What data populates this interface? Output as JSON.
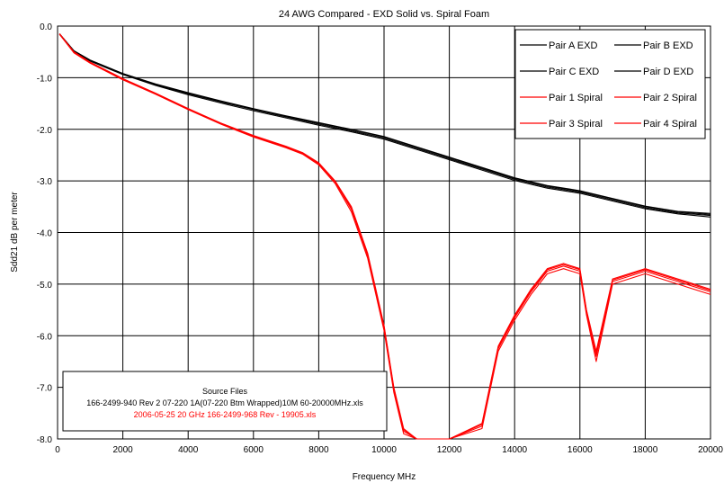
{
  "chart_data": {
    "type": "line",
    "title": "24 AWG Compared - EXD Solid vs. Spiral Foam",
    "xlabel": "Frequency  MHz",
    "ylabel": "Sdd21  dB per meter",
    "xlim": [
      0,
      20000
    ],
    "ylim": [
      -8,
      0
    ],
    "x_ticks": [
      "0",
      "2000",
      "4000",
      "6000",
      "8000",
      "10000",
      "12000",
      "14000",
      "16000",
      "18000",
      "20000"
    ],
    "y_ticks": [
      "0.0",
      "-1.0",
      "-2.0",
      "-3.0",
      "-4.0",
      "-5.0",
      "-6.0",
      "-7.0",
      "-8.0"
    ],
    "grid": true,
    "legend_position": "top-right",
    "series": [
      {
        "name": "Pair A EXD",
        "color": "#000000",
        "x": [
          60,
          500,
          1000,
          2000,
          3000,
          4000,
          5000,
          6000,
          7000,
          8000,
          9000,
          10000,
          11000,
          12000,
          13000,
          14000,
          15000,
          16000,
          17000,
          18000,
          19000,
          20000
        ],
        "y": [
          -0.15,
          -0.48,
          -0.66,
          -0.92,
          -1.13,
          -1.3,
          -1.46,
          -1.61,
          -1.75,
          -1.88,
          -2.01,
          -2.15,
          -2.35,
          -2.55,
          -2.75,
          -2.95,
          -3.1,
          -3.2,
          -3.35,
          -3.5,
          -3.6,
          -3.65
        ]
      },
      {
        "name": "Pair B EXD",
        "color": "#000000",
        "x": [
          60,
          500,
          1000,
          2000,
          3000,
          4000,
          5000,
          6000,
          7000,
          8000,
          9000,
          10000,
          11000,
          12000,
          13000,
          14000,
          15000,
          16000,
          17000,
          18000,
          19000,
          20000
        ],
        "y": [
          -0.15,
          -0.49,
          -0.67,
          -0.93,
          -1.14,
          -1.31,
          -1.47,
          -1.62,
          -1.76,
          -1.9,
          -2.03,
          -2.17,
          -2.37,
          -2.57,
          -2.77,
          -2.97,
          -3.12,
          -3.22,
          -3.37,
          -3.52,
          -3.62,
          -3.67
        ]
      },
      {
        "name": "Pair C EXD",
        "color": "#000000",
        "x": [
          60,
          500,
          1000,
          2000,
          3000,
          4000,
          5000,
          6000,
          7000,
          8000,
          9000,
          10000,
          11000,
          12000,
          13000,
          14000,
          15000,
          16000,
          17000,
          18000,
          19000,
          20000
        ],
        "y": [
          -0.16,
          -0.5,
          -0.68,
          -0.94,
          -1.15,
          -1.33,
          -1.49,
          -1.64,
          -1.78,
          -1.92,
          -2.05,
          -2.19,
          -2.39,
          -2.59,
          -2.79,
          -2.99,
          -3.14,
          -3.24,
          -3.39,
          -3.54,
          -3.64,
          -3.7
        ]
      },
      {
        "name": "Pair D EXD",
        "color": "#000000",
        "x": [
          60,
          500,
          1000,
          2000,
          3000,
          4000,
          5000,
          6000,
          7000,
          8000,
          9000,
          10000,
          11000,
          12000,
          13000,
          14000,
          15000,
          16000,
          17000,
          18000,
          19000,
          20000
        ],
        "y": [
          -0.15,
          -0.48,
          -0.66,
          -0.92,
          -1.12,
          -1.29,
          -1.45,
          -1.6,
          -1.74,
          -1.87,
          -2.0,
          -2.14,
          -2.34,
          -2.54,
          -2.74,
          -2.94,
          -3.09,
          -3.19,
          -3.34,
          -3.49,
          -3.59,
          -3.63
        ]
      },
      {
        "name": "Pair 1 Spiral",
        "color": "#ff0000",
        "x": [
          60,
          500,
          1000,
          2000,
          3000,
          4000,
          5000,
          6000,
          7000,
          7500,
          8000,
          8500,
          9000,
          9500,
          10000,
          10300,
          10600,
          11000,
          12000,
          13000,
          13500,
          14000,
          14500,
          15000,
          15500,
          16000,
          16200,
          16500,
          17000,
          18000,
          19000,
          20000
        ],
        "y": [
          -0.15,
          -0.5,
          -0.7,
          -1.02,
          -1.3,
          -1.6,
          -1.88,
          -2.12,
          -2.33,
          -2.45,
          -2.65,
          -3.0,
          -3.5,
          -4.4,
          -5.8,
          -7.0,
          -7.8,
          -8.0,
          -8.0,
          -7.7,
          -6.2,
          -5.6,
          -5.1,
          -4.7,
          -4.6,
          -4.7,
          -5.5,
          -6.3,
          -4.9,
          -4.7,
          -4.9,
          -5.1
        ]
      },
      {
        "name": "Pair 2 Spiral",
        "color": "#ff0000",
        "x": [
          60,
          500,
          1000,
          2000,
          3000,
          4000,
          5000,
          6000,
          7000,
          7500,
          8000,
          8500,
          9000,
          9500,
          10000,
          10300,
          10600,
          11000,
          12000,
          13000,
          13500,
          14000,
          14500,
          15000,
          15500,
          16000,
          16200,
          16500,
          17000,
          18000,
          19000,
          20000
        ],
        "y": [
          -0.15,
          -0.51,
          -0.71,
          -1.03,
          -1.31,
          -1.61,
          -1.89,
          -2.14,
          -2.35,
          -2.47,
          -2.67,
          -3.02,
          -3.55,
          -4.45,
          -5.85,
          -7.05,
          -7.85,
          -8.0,
          -8.0,
          -7.75,
          -6.25,
          -5.65,
          -5.15,
          -4.75,
          -4.65,
          -4.75,
          -5.55,
          -6.4,
          -4.95,
          -4.75,
          -4.95,
          -5.15
        ]
      },
      {
        "name": "Pair 3 Spiral",
        "color": "#ff0000",
        "x": [
          60,
          500,
          1000,
          2000,
          3000,
          4000,
          5000,
          6000,
          7000,
          7500,
          8000,
          8500,
          9000,
          9500,
          10000,
          10300,
          10600,
          11000,
          12000,
          13000,
          13500,
          14000,
          14500,
          15000,
          15500,
          16000,
          16200,
          16500,
          17000,
          18000,
          19000,
          20000
        ],
        "y": [
          -0.16,
          -0.52,
          -0.72,
          -1.04,
          -1.32,
          -1.62,
          -1.9,
          -2.15,
          -2.36,
          -2.48,
          -2.69,
          -3.05,
          -3.6,
          -4.5,
          -5.9,
          -7.1,
          -7.9,
          -8.0,
          -8.0,
          -7.8,
          -6.3,
          -5.7,
          -5.2,
          -4.8,
          -4.7,
          -4.8,
          -5.6,
          -6.5,
          -5.0,
          -4.8,
          -5.0,
          -5.2
        ]
      },
      {
        "name": "Pair 4 Spiral",
        "color": "#ff0000",
        "x": [
          60,
          500,
          1000,
          2000,
          3000,
          4000,
          5000,
          6000,
          7000,
          7500,
          8000,
          8500,
          9000,
          9500,
          10000,
          10300,
          10600,
          11000,
          12000,
          13000,
          13500,
          14000,
          14500,
          15000,
          15500,
          16000,
          16200,
          16500,
          17000,
          18000,
          19000,
          20000
        ],
        "y": [
          -0.15,
          -0.5,
          -0.7,
          -1.02,
          -1.3,
          -1.6,
          -1.88,
          -2.13,
          -2.34,
          -2.46,
          -2.66,
          -3.01,
          -3.52,
          -4.42,
          -5.82,
          -7.02,
          -7.82,
          -8.0,
          -8.0,
          -7.72,
          -6.22,
          -5.62,
          -5.12,
          -4.72,
          -4.62,
          -4.72,
          -5.52,
          -6.35,
          -4.92,
          -4.72,
          -4.92,
          -5.12
        ]
      }
    ],
    "note": {
      "title": "Source Files",
      "line1": "166-2499-940 Rev 2 07-220 1A(07-220 Btm Wrapped)10M 60-20000MHz.xls",
      "line2": "2006-05-25  20 GHz  166-2499-968 Rev -  19905.xls",
      "line1_color": "#000000",
      "line2_color": "#ff0000"
    }
  }
}
